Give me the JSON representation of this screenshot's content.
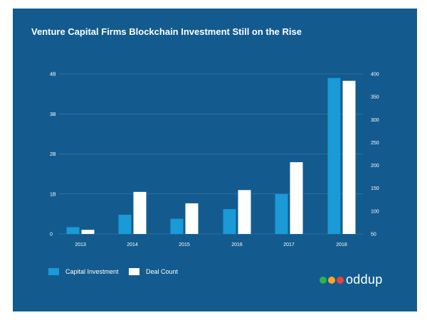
{
  "chart_data": {
    "type": "bar",
    "title": "Venture Capital Firms Blockchain Investment Still on the Rise",
    "categories": [
      "2013",
      "2014",
      "2015",
      "2016",
      "2017",
      "2018"
    ],
    "series": [
      {
        "name": "Capital Investment",
        "axis": "left",
        "color": "#1a9ad6",
        "values": [
          0.17,
          0.48,
          0.38,
          0.62,
          1.0,
          3.9
        ]
      },
      {
        "name": "Deal Count",
        "axis": "right",
        "color": "#ffffff",
        "values": [
          59,
          142,
          117,
          146,
          207,
          385
        ]
      }
    ],
    "y_left": {
      "ticks": [
        0,
        1,
        2,
        3,
        4
      ],
      "tick_labels": [
        "0",
        "1B",
        "2B",
        "3B",
        "4B"
      ],
      "ylim": [
        0,
        4
      ]
    },
    "y_right": {
      "ticks": [
        50,
        100,
        150,
        200,
        250,
        300,
        350,
        400
      ],
      "tick_labels": [
        "50",
        "100",
        "150",
        "200",
        "250",
        "300",
        "350",
        "400"
      ],
      "ylim": [
        50,
        400
      ]
    },
    "grid": true,
    "legend": "bottom-left"
  },
  "colors": {
    "background": "#135b8e",
    "grid": "#4b81ab",
    "capital_bar": "#1a9ad6",
    "deal_bar": "#ffffff",
    "logo_dots": [
      "#2fb34a",
      "#f7a823",
      "#ef4136"
    ]
  },
  "logo": {
    "text": "oddup"
  }
}
